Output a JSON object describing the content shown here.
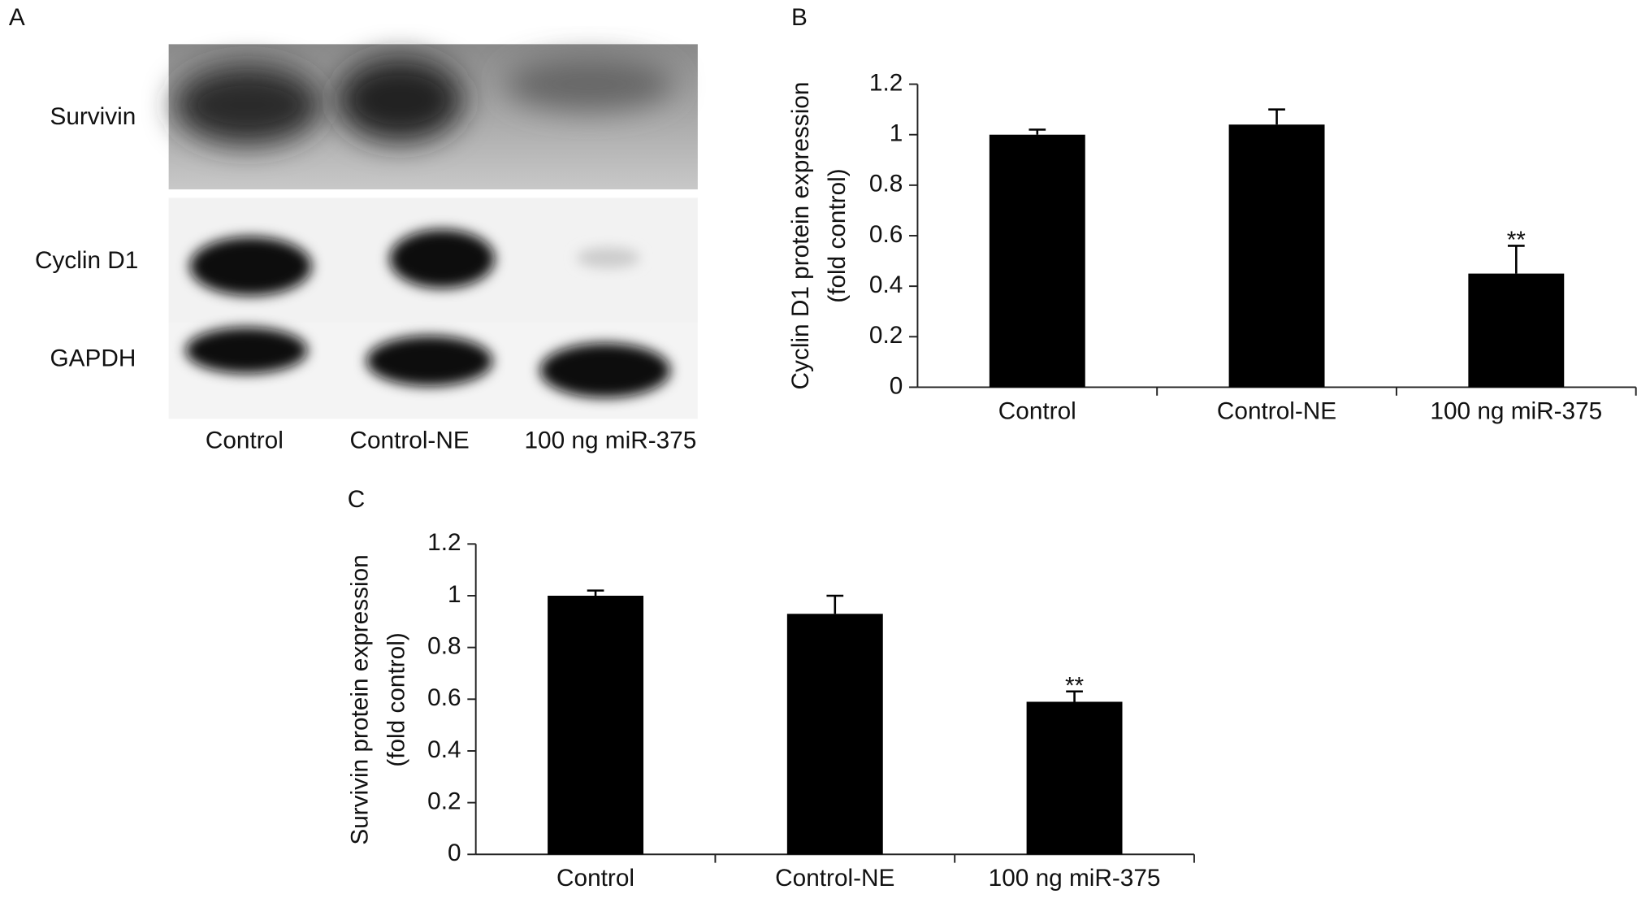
{
  "panel_a": {
    "label": "A",
    "row_labels": [
      "Survivin",
      "Cyclin D1",
      "GAPDH"
    ],
    "lane_labels": [
      "Control",
      "Control-NE",
      "100 ng miR-375"
    ]
  },
  "chart_data": [
    {
      "type": "bar",
      "panel_label": "B",
      "y_label_lines": [
        "Cyclin D1 protein expression",
        "(fold control)"
      ],
      "categories": [
        "Control",
        "Control-NE",
        "100 ng miR-375"
      ],
      "values": [
        1.0,
        1.04,
        0.45
      ],
      "errors": [
        0.02,
        0.06,
        0.11
      ],
      "significance": [
        null,
        null,
        "**"
      ],
      "color": "#000000",
      "ylim": [
        0,
        1.2
      ],
      "yticks": [
        0,
        0.2,
        0.4,
        0.6,
        0.8,
        1,
        1.2
      ]
    },
    {
      "type": "bar",
      "panel_label": "C",
      "y_label_lines": [
        "Survivin protein expression",
        "(fold control)"
      ],
      "categories": [
        "Control",
        "Control-NE",
        "100 ng miR-375"
      ],
      "values": [
        1.0,
        0.93,
        0.59
      ],
      "errors": [
        0.02,
        0.07,
        0.04
      ],
      "significance": [
        null,
        null,
        "**"
      ],
      "color": "#000000",
      "ylim": [
        0,
        1.2
      ],
      "yticks": [
        0,
        0.2,
        0.4,
        0.6,
        0.8,
        1,
        1.2
      ]
    }
  ]
}
